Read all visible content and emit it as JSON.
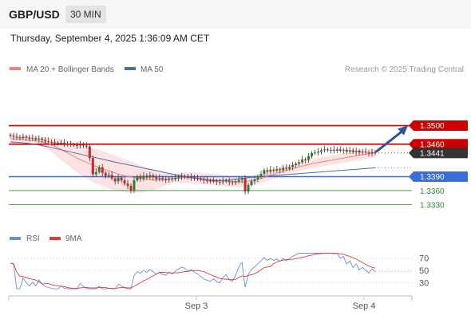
{
  "header": {
    "symbol": "GBP/USD",
    "timeframe": "30 MIN",
    "datetime": "Thursday, September 4, 2025 1:36:09 AM CET"
  },
  "legend": {
    "ma_bollinger": "MA 20 + Bollinger Bands",
    "ma50": "MA 50",
    "credit": "Research © 2025 Trading Central"
  },
  "colors": {
    "ma20": "#f08080",
    "band": "#fde3e3",
    "ma50": "#4a6fa5",
    "resistance": "#cc0000",
    "pivot": "#3a6fd8",
    "support": "#2e8b2e",
    "bull": "#2e7d32",
    "bear": "#c62828",
    "arrow": "#2b5597",
    "rsi": "#6a8fe0",
    "rsi_ma": "#e53935"
  },
  "chart_data": [
    {
      "type": "candlestick",
      "x_ticks": [
        "Sep 3",
        "Sep 4"
      ],
      "price_range": [
        1.331,
        1.3525
      ],
      "levels": [
        {
          "value": 1.35,
          "label": "1.3500",
          "kind": "resistance"
        },
        {
          "value": 1.346,
          "label": "1.3460",
          "kind": "resistance"
        },
        {
          "value": 1.3441,
          "label": "1.3441",
          "kind": "last"
        },
        {
          "value": 1.339,
          "label": "1.3390",
          "kind": "pivot"
        },
        {
          "value": 1.336,
          "label": "1.3360",
          "kind": "support"
        },
        {
          "value": 1.333,
          "label": "1.3330",
          "kind": "support"
        }
      ],
      "close": [
        1.3478,
        1.3476,
        1.3475,
        1.3473,
        1.3476,
        1.3474,
        1.3472,
        1.3473,
        1.347,
        1.3472,
        1.3469,
        1.3466,
        1.3465,
        1.3464,
        1.3463,
        1.3462,
        1.3463,
        1.3461,
        1.346,
        1.3459,
        1.3458,
        1.3457,
        1.3459,
        1.3457,
        1.3455,
        1.343,
        1.3395,
        1.34,
        1.341,
        1.3398,
        1.3392,
        1.3394,
        1.3386,
        1.338,
        1.3388,
        1.3382,
        1.3375,
        1.337,
        1.336,
        1.3382,
        1.339,
        1.3386,
        1.3392,
        1.3388,
        1.3393,
        1.3389,
        1.3385,
        1.3387,
        1.3384,
        1.3383,
        1.3386,
        1.3384,
        1.3387,
        1.3389,
        1.3391,
        1.339,
        1.3388,
        1.3389,
        1.3387,
        1.3386,
        1.3384,
        1.3382,
        1.3381,
        1.338,
        1.3381,
        1.3379,
        1.3378,
        1.338,
        1.3381,
        1.3378,
        1.3377,
        1.3379,
        1.3383,
        1.3386,
        1.3358,
        1.3372,
        1.338,
        1.3384,
        1.339,
        1.3396,
        1.3404,
        1.3401,
        1.3405,
        1.3403,
        1.3406,
        1.3404,
        1.3409,
        1.3407,
        1.3411,
        1.3415,
        1.3418,
        1.3421,
        1.3427,
        1.3426,
        1.3434,
        1.3441,
        1.3442,
        1.3444,
        1.3447,
        1.3449,
        1.3447,
        1.3448,
        1.3446,
        1.3449,
        1.3446,
        1.3448,
        1.3444,
        1.3447,
        1.3443,
        1.3446,
        1.3442,
        1.3444,
        1.3442,
        1.344,
        1.3443,
        1.3441
      ],
      "ma20": [
        1.3472,
        1.3471,
        1.347,
        1.3469,
        1.3468,
        1.3467,
        1.3465,
        1.3462,
        1.3458,
        1.3452,
        1.3446,
        1.344,
        1.3434,
        1.3428,
        1.3423,
        1.3418,
        1.3413,
        1.3409,
        1.3405,
        1.3401,
        1.3397,
        1.3394,
        1.3391,
        1.3389,
        1.3387,
        1.3385,
        1.3384,
        1.3383,
        1.3383,
        1.3384,
        1.3385,
        1.3386,
        1.3387,
        1.3388,
        1.3388,
        1.3387,
        1.3386,
        1.3385,
        1.3384,
        1.3383,
        1.3382,
        1.3381,
        1.338,
        1.3379,
        1.3379,
        1.338,
        1.3382,
        1.3385,
        1.3388,
        1.3392,
        1.3396,
        1.34,
        1.3403,
        1.3406,
        1.3409,
        1.3412,
        1.3415,
        1.3418,
        1.342,
        1.3422,
        1.3424,
        1.3426,
        1.3428,
        1.343,
        1.3432,
        1.3434,
        1.3436,
        1.3438,
        1.344,
        1.3441
      ],
      "ma50": [
        1.3465,
        1.3463,
        1.346,
        1.3455,
        1.3449,
        1.3443,
        1.3437,
        1.3431,
        1.3425,
        1.3419,
        1.3414,
        1.3408,
        1.3403,
        1.3397,
        1.3392,
        1.3387,
        1.3383,
        1.3381,
        1.3383,
        1.3386,
        1.3389,
        1.3391,
        1.3393,
        1.3395,
        1.3397,
        1.3399,
        1.3401,
        1.3403,
        1.3405,
        1.3407,
        1.3409
      ],
      "annotation": "bullish arrow toward 1.3500"
    },
    {
      "type": "line",
      "legend": [
        "RSI",
        "9MA"
      ],
      "y_ticks": [
        70,
        50,
        30
      ],
      "ylim": [
        15,
        80
      ]
    }
  ]
}
